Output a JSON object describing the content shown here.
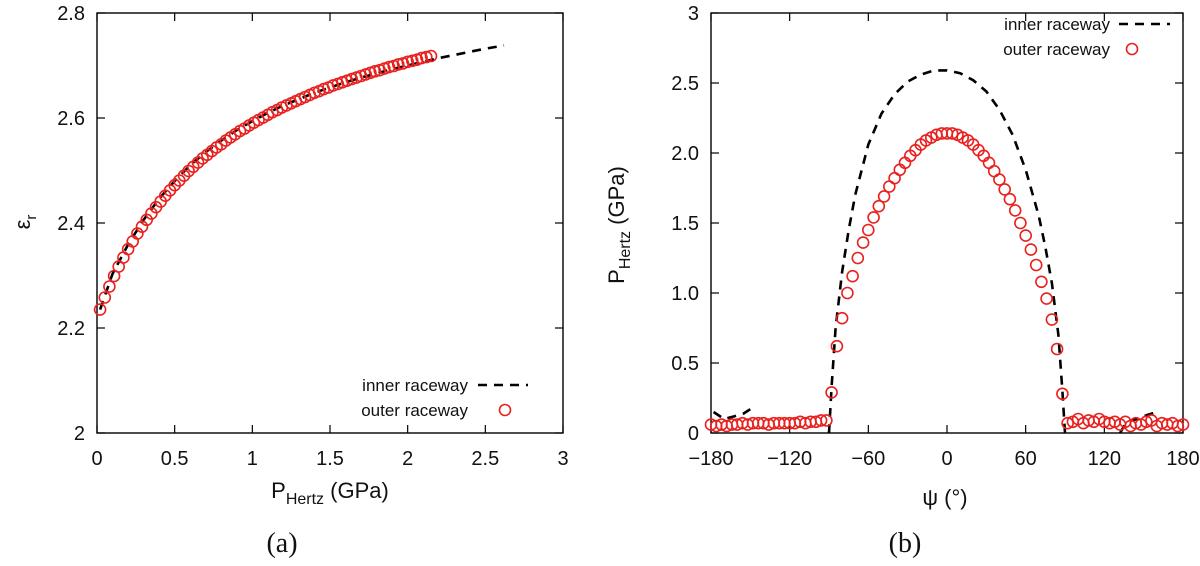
{
  "chart_data": [
    {
      "type": "line",
      "panel_label": "(a)",
      "xlabel": {
        "main": "P",
        "sub": "Hertz",
        "unit": " (GPa)"
      },
      "ylabel": {
        "main": "ε",
        "sub": "r"
      },
      "xlim": [
        0,
        3
      ],
      "ylim": [
        2.0,
        2.8
      ],
      "xticks": [
        0,
        0.5,
        1,
        1.5,
        2,
        2.5,
        3
      ],
      "xtick_labels": [
        "0",
        "0.5",
        "1",
        "1.5",
        "2",
        "2.5",
        "3"
      ],
      "yticks": [
        2.0,
        2.2,
        2.4,
        2.6,
        2.8
      ],
      "ytick_labels": [
        "2",
        "2.2",
        "2.4",
        "2.6",
        "2.8"
      ],
      "legend_position": "bottom-right",
      "series": [
        {
          "name": "inner raceway",
          "style": "dashed",
          "color": "#000000",
          "x": [
            0.02,
            0.1,
            0.2,
            0.3,
            0.4,
            0.5,
            0.6,
            0.7,
            0.8,
            0.9,
            1.0,
            1.1,
            1.2,
            1.3,
            1.4,
            1.5,
            1.6,
            1.7,
            1.8,
            1.9,
            2.0,
            2.1,
            2.2,
            2.3,
            2.4,
            2.5,
            2.62
          ],
          "y": [
            2.235,
            2.303,
            2.359,
            2.406,
            2.446,
            2.48,
            2.51,
            2.535,
            2.557,
            2.577,
            2.594,
            2.61,
            2.624,
            2.636,
            2.648,
            2.658,
            2.668,
            2.677,
            2.685,
            2.693,
            2.7,
            2.707,
            2.714,
            2.72,
            2.726,
            2.732,
            2.738
          ]
        },
        {
          "name": "outer raceway",
          "style": "markers",
          "marker": "open-circle",
          "color": "#e8211f",
          "x": [
            0.02,
            0.05,
            0.08,
            0.11,
            0.14,
            0.17,
            0.2,
            0.23,
            0.26,
            0.29,
            0.32,
            0.35,
            0.38,
            0.41,
            0.44,
            0.47,
            0.5,
            0.53,
            0.56,
            0.59,
            0.62,
            0.65,
            0.68,
            0.71,
            0.74,
            0.77,
            0.8,
            0.83,
            0.86,
            0.89,
            0.92,
            0.95,
            0.98,
            1.01,
            1.04,
            1.07,
            1.1,
            1.13,
            1.16,
            1.19,
            1.22,
            1.25,
            1.28,
            1.31,
            1.34,
            1.37,
            1.4,
            1.43,
            1.46,
            1.49,
            1.52,
            1.55,
            1.58,
            1.61,
            1.64,
            1.67,
            1.7,
            1.73,
            1.76,
            1.79,
            1.82,
            1.85,
            1.88,
            1.91,
            1.94,
            1.97,
            2.0,
            2.03,
            2.06,
            2.09,
            2.12,
            2.15
          ],
          "y": [
            2.235,
            2.258,
            2.279,
            2.299,
            2.317,
            2.334,
            2.35,
            2.365,
            2.38,
            2.393,
            2.406,
            2.418,
            2.43,
            2.441,
            2.452,
            2.462,
            2.472,
            2.481,
            2.49,
            2.499,
            2.507,
            2.515,
            2.523,
            2.53,
            2.537,
            2.544,
            2.55,
            2.557,
            2.563,
            2.569,
            2.575,
            2.58,
            2.586,
            2.591,
            2.596,
            2.601,
            2.606,
            2.611,
            2.615,
            2.62,
            2.624,
            2.628,
            2.632,
            2.636,
            2.64,
            2.644,
            2.648,
            2.651,
            2.655,
            2.658,
            2.662,
            2.665,
            2.668,
            2.671,
            2.674,
            2.677,
            2.68,
            2.683,
            2.686,
            2.689,
            2.691,
            2.694,
            2.697,
            2.699,
            2.702,
            2.704,
            2.707,
            2.709,
            2.711,
            2.714,
            2.716,
            2.718
          ]
        }
      ]
    },
    {
      "type": "line",
      "panel_label": "(b)",
      "xlabel": {
        "main": "ψ",
        "unit": " (°)"
      },
      "ylabel": {
        "main": "P",
        "sub": "Hertz",
        "unit": " (GPa)"
      },
      "xlim": [
        -180,
        180
      ],
      "ylim": [
        0,
        3
      ],
      "xticks": [
        -180,
        -120,
        -60,
        0,
        60,
        120,
        180
      ],
      "xtick_labels": [
        "−180",
        "−120",
        "−60",
        "0",
        "60",
        "120",
        "180"
      ],
      "yticks": [
        0,
        0.5,
        1,
        1.5,
        2,
        2.5,
        3
      ],
      "ytick_labels": [
        "0",
        "0.5",
        "1.0",
        "1.5",
        "2.0",
        "2.5",
        "3"
      ],
      "legend_position": "top-right",
      "series": [
        {
          "name": "inner raceway",
          "style": "dashed",
          "color": "#000000",
          "segments": [
            {
              "x": [
                -178,
                -170,
                -162,
                -155,
                -150
              ],
              "y": [
                0.15,
                0.1,
                0.12,
                0.14,
                0.17
              ]
            },
            {
              "x": [
                -90,
                -88,
                -85,
                -80,
                -75,
                -70,
                -60,
                -50,
                -40,
                -30,
                -20,
                -10,
                0,
                10,
                20,
                30,
                40,
                50,
                60,
                70,
                75,
                80,
                85,
                88,
                90
              ],
              "y": [
                0,
                0.33,
                0.75,
                1.15,
                1.45,
                1.7,
                2.06,
                2.28,
                2.42,
                2.51,
                2.56,
                2.59,
                2.59,
                2.57,
                2.52,
                2.44,
                2.31,
                2.13,
                1.88,
                1.55,
                1.33,
                1.07,
                0.7,
                0.3,
                0
              ]
            },
            {
              "x": [
                132,
                137,
                145,
                153,
                160
              ],
              "y": [
                0,
                0.08,
                0.1,
                0.13,
                0.15
              ]
            }
          ]
        },
        {
          "name": "outer raceway",
          "style": "markers",
          "marker": "open-circle",
          "color": "#e8211f",
          "x": [
            -180,
            -176,
            -172,
            -168,
            -164,
            -160,
            -156,
            -152,
            -148,
            -144,
            -140,
            -136,
            -132,
            -128,
            -124,
            -120,
            -116,
            -112,
            -108,
            -104,
            -100,
            -96,
            -92,
            -88,
            -84,
            -80,
            -76,
            -72,
            -68,
            -64,
            -60,
            -56,
            -52,
            -48,
            -44,
            -40,
            -36,
            -32,
            -28,
            -24,
            -20,
            -16,
            -12,
            -8,
            -4,
            0,
            4,
            8,
            12,
            16,
            20,
            24,
            28,
            32,
            36,
            40,
            44,
            48,
            52,
            56,
            60,
            64,
            68,
            72,
            76,
            80,
            84,
            88,
            92,
            96,
            100,
            104,
            108,
            112,
            116,
            120,
            124,
            128,
            132,
            136,
            140,
            144,
            148,
            152,
            156,
            160,
            164,
            168,
            172,
            176,
            180
          ],
          "y": [
            0.06,
            0.05,
            0.06,
            0.05,
            0.06,
            0.06,
            0.07,
            0.06,
            0.07,
            0.07,
            0.07,
            0.06,
            0.07,
            0.07,
            0.07,
            0.07,
            0.07,
            0.08,
            0.07,
            0.08,
            0.08,
            0.09,
            0.09,
            0.29,
            0.62,
            0.82,
            1.0,
            1.12,
            1.25,
            1.36,
            1.45,
            1.54,
            1.62,
            1.69,
            1.76,
            1.82,
            1.88,
            1.93,
            1.98,
            2.02,
            2.06,
            2.09,
            2.11,
            2.13,
            2.14,
            2.14,
            2.14,
            2.13,
            2.11,
            2.09,
            2.06,
            2.02,
            1.98,
            1.93,
            1.87,
            1.81,
            1.74,
            1.67,
            1.59,
            1.5,
            1.41,
            1.31,
            1.2,
            1.08,
            0.96,
            0.81,
            0.6,
            0.28,
            0.07,
            0.08,
            0.1,
            0.07,
            0.09,
            0.08,
            0.1,
            0.08,
            0.07,
            0.08,
            0.06,
            0.08,
            0.05,
            0.07,
            0.06,
            0.08,
            0.09,
            0.05,
            0.07,
            0.06,
            0.07,
            0.05,
            0.06
          ]
        }
      ]
    }
  ]
}
